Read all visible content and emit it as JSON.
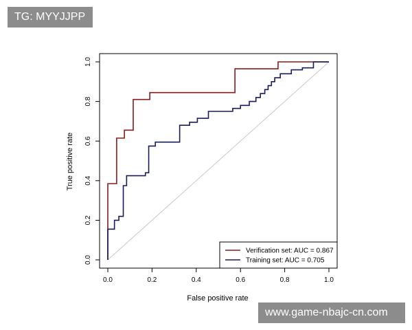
{
  "watermarks": {
    "top_left": "TG: MYYJJPP",
    "bottom_right": "www.game-nbajc-cn.com"
  },
  "chart_data": {
    "type": "line",
    "title": "",
    "xlabel": "False positive rate",
    "ylabel": "True positive rate",
    "xlim": [
      0,
      1
    ],
    "ylim": [
      0,
      1
    ],
    "x_ticks": [
      0.0,
      0.2,
      0.4,
      0.6,
      0.8,
      1.0
    ],
    "y_ticks": [
      0.0,
      0.2,
      0.4,
      0.6,
      0.8,
      1.0
    ],
    "x_tick_labels": [
      "0.0",
      "0.2",
      "0.4",
      "0.6",
      "0.8",
      "1.0"
    ],
    "y_tick_labels": [
      "0.0",
      "0.2",
      "0.4",
      "0.6",
      "0.8",
      "1.0"
    ],
    "grid": false,
    "legend_position": "bottom-right",
    "diagonal_reference": true,
    "series": [
      {
        "name": "Verification set: AUC = 0.867",
        "color": "#8b1a1a",
        "points": [
          [
            0.0,
            0.0
          ],
          [
            0.0,
            0.385
          ],
          [
            0.04,
            0.385
          ],
          [
            0.04,
            0.615
          ],
          [
            0.075,
            0.615
          ],
          [
            0.075,
            0.655
          ],
          [
            0.115,
            0.655
          ],
          [
            0.115,
            0.81
          ],
          [
            0.19,
            0.81
          ],
          [
            0.19,
            0.845
          ],
          [
            0.575,
            0.845
          ],
          [
            0.575,
            0.965
          ],
          [
            0.77,
            0.965
          ],
          [
            0.77,
            1.0
          ],
          [
            1.0,
            1.0
          ]
        ]
      },
      {
        "name": "Training set: AUC = 0.705",
        "color": "#1a1a5e",
        "points": [
          [
            0.0,
            0.0
          ],
          [
            0.0,
            0.155
          ],
          [
            0.03,
            0.155
          ],
          [
            0.03,
            0.2
          ],
          [
            0.05,
            0.2
          ],
          [
            0.05,
            0.22
          ],
          [
            0.07,
            0.22
          ],
          [
            0.07,
            0.375
          ],
          [
            0.085,
            0.375
          ],
          [
            0.085,
            0.425
          ],
          [
            0.17,
            0.425
          ],
          [
            0.17,
            0.44
          ],
          [
            0.185,
            0.44
          ],
          [
            0.185,
            0.575
          ],
          [
            0.215,
            0.575
          ],
          [
            0.215,
            0.595
          ],
          [
            0.325,
            0.595
          ],
          [
            0.325,
            0.68
          ],
          [
            0.37,
            0.68
          ],
          [
            0.37,
            0.695
          ],
          [
            0.405,
            0.695
          ],
          [
            0.405,
            0.715
          ],
          [
            0.455,
            0.715
          ],
          [
            0.455,
            0.75
          ],
          [
            0.565,
            0.75
          ],
          [
            0.565,
            0.765
          ],
          [
            0.6,
            0.765
          ],
          [
            0.6,
            0.78
          ],
          [
            0.64,
            0.78
          ],
          [
            0.64,
            0.8
          ],
          [
            0.67,
            0.8
          ],
          [
            0.67,
            0.82
          ],
          [
            0.69,
            0.82
          ],
          [
            0.69,
            0.84
          ],
          [
            0.71,
            0.84
          ],
          [
            0.71,
            0.86
          ],
          [
            0.725,
            0.86
          ],
          [
            0.725,
            0.88
          ],
          [
            0.74,
            0.88
          ],
          [
            0.74,
            0.9
          ],
          [
            0.755,
            0.9
          ],
          [
            0.755,
            0.92
          ],
          [
            0.78,
            0.92
          ],
          [
            0.78,
            0.94
          ],
          [
            0.83,
            0.94
          ],
          [
            0.83,
            0.96
          ],
          [
            0.88,
            0.96
          ],
          [
            0.88,
            0.97
          ],
          [
            0.93,
            0.97
          ],
          [
            0.93,
            1.0
          ],
          [
            1.0,
            1.0
          ]
        ]
      }
    ],
    "colors": {
      "diagonal": "#c8c8c8",
      "axis": "#000000"
    }
  }
}
